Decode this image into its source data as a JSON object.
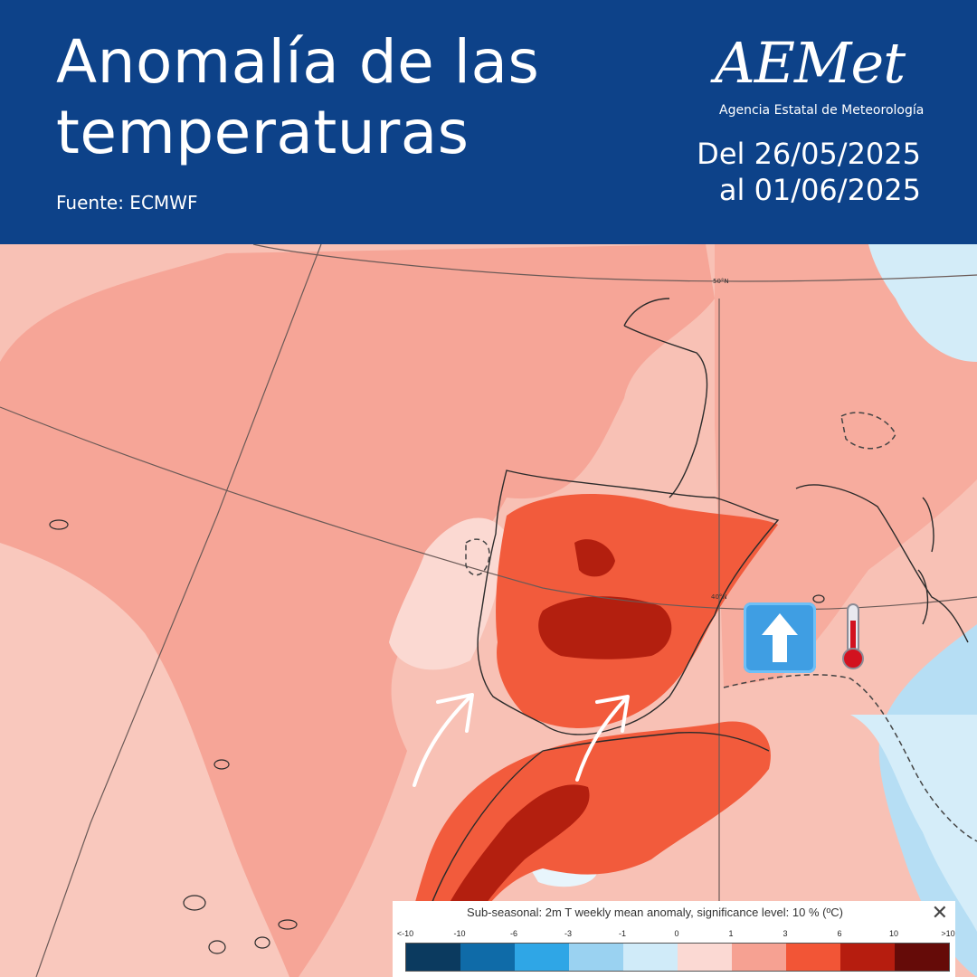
{
  "header": {
    "title_line1": "Anomalía de las",
    "title_line2": "temperaturas",
    "source": "Fuente: ECMWF",
    "logo_text": "AEMet",
    "logo_subtitle": "Agencia Estatal de Meteorología",
    "date_line1": "Del 26/05/2025",
    "date_line2": "al 01/06/2025"
  },
  "map": {
    "lat_label_50": "50°N",
    "lat_label_40": "40°N",
    "emoji_arrow": "up-arrow-icon",
    "emoji_thermometer": "thermometer-icon"
  },
  "legend": {
    "title": "Sub-seasonal: 2m T weekly mean anomaly, significance level: 10 % (ºC)",
    "close": "✕",
    "ticks": [
      "<-10",
      "-10",
      "-6",
      "-3",
      "-1",
      "0",
      "1",
      "3",
      "6",
      "10",
      ">10"
    ],
    "colors": [
      "#0b3a5f",
      "#0f6ba8",
      "#2fa6e6",
      "#9ad2f1",
      "#d0ebf9",
      "#fbd9d3",
      "#f6a192",
      "#f25536",
      "#b61d0f",
      "#650b08"
    ]
  }
}
